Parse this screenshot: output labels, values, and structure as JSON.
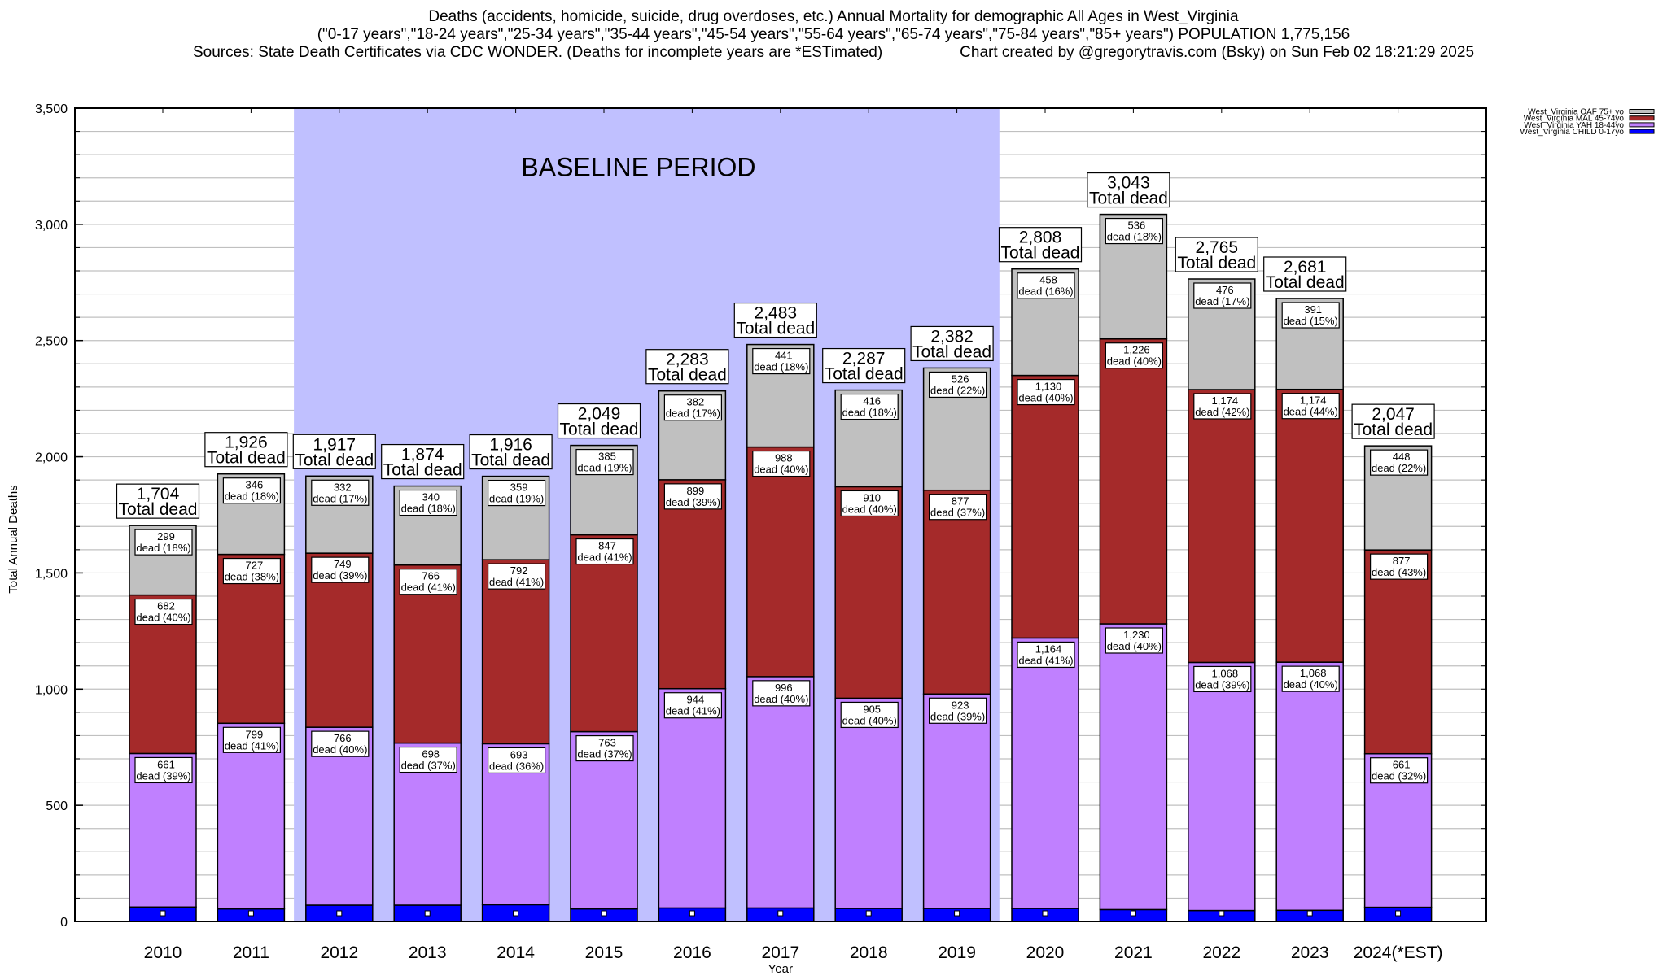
{
  "header": {
    "title_line_1": "Deaths (accidents, homicide, suicide, drug overdoses, etc.) Annual Mortality for demographic All Ages in West_Virginia",
    "title_line_2": "(\"0-17 years\",\"18-24 years\",\"25-34 years\",\"35-44 years\",\"45-54 years\",\"55-64 years\",\"65-74 years\",\"75-84 years\",\"85+ years\") POPULATION 1,775,156",
    "sources": "Sources: State Death Certificates via CDC WONDER. (Deaths for incomplete years are *ESTimated)",
    "credit": "Chart created by @gregorytravis.com (Bsky) on Sun Feb 02 18:21:29 2025"
  },
  "chart_data": {
    "type": "bar",
    "stacked": true,
    "title": "Deaths (accidents, homicide, suicide, drug overdoses, etc.) Annual Mortality for demographic All Ages in West_Virginia",
    "xlabel": "Year",
    "ylabel": "Total Annual Deaths",
    "ylim": [
      0,
      3500
    ],
    "yticks": [
      0,
      500,
      1000,
      1500,
      2000,
      2500,
      3000,
      3500
    ],
    "ytick_labels": [
      "0",
      "500",
      "1,000",
      "1,500",
      "2,000",
      "2,500",
      "3,000",
      "3,500"
    ],
    "minor_grid_step": 100,
    "grid": true,
    "legend_placement": "top-right (outside plot)",
    "categories": [
      "2010",
      "2011",
      "2012",
      "2013",
      "2014",
      "2015",
      "2016",
      "2017",
      "2018",
      "2019",
      "2020",
      "2021",
      "2022",
      "2023",
      "2024(*EST)"
    ],
    "series": [
      {
        "name": "West_Virginia CHILD 0-17yo",
        "color": "#0000ff",
        "values": [
          62,
          54,
          70,
          70,
          72,
          54,
          58,
          58,
          56,
          56,
          56,
          51,
          47,
          48,
          61
        ],
        "pct": [
          null,
          null,
          null,
          null,
          null,
          null,
          null,
          null,
          null,
          null,
          null,
          null,
          null,
          null,
          null
        ]
      },
      {
        "name": "West_Virginia YAH 18-44yo",
        "color": "#c080ff",
        "values": [
          661,
          799,
          766,
          698,
          693,
          763,
          944,
          996,
          905,
          923,
          1164,
          1230,
          1068,
          1068,
          661
        ],
        "pct": [
          39,
          41,
          40,
          37,
          36,
          37,
          41,
          40,
          40,
          39,
          41,
          40,
          39,
          40,
          32
        ]
      },
      {
        "name": "West_Virginia MAL 45-74yo",
        "color": "#a52a2a",
        "values": [
          682,
          727,
          749,
          766,
          792,
          847,
          899,
          988,
          910,
          877,
          1130,
          1226,
          1174,
          1174,
          877
        ],
        "pct": [
          40,
          38,
          39,
          41,
          41,
          41,
          39,
          40,
          40,
          37,
          40,
          40,
          42,
          44,
          43
        ]
      },
      {
        "name": "West_Virginia OAF 75+ yo",
        "color": "#c0c0c0",
        "values": [
          299,
          346,
          332,
          340,
          359,
          385,
          382,
          441,
          416,
          526,
          458,
          536,
          476,
          391,
          448
        ],
        "pct": [
          18,
          18,
          17,
          18,
          19,
          19,
          17,
          18,
          18,
          22,
          16,
          18,
          17,
          15,
          22
        ]
      }
    ],
    "totals": [
      1704,
      1926,
      1917,
      1874,
      1916,
      2049,
      2283,
      2483,
      2287,
      2382,
      2808,
      3043,
      2765,
      2681,
      2047
    ],
    "total_suffix": "Total dead",
    "segment_suffix": "dead",
    "legend_order": [
      "West_Virginia OAF 75+ yo",
      "West_Virginia MAL 45-74yo",
      "West_Virginia YAH 18-44yo",
      "West_Virginia CHILD 0-17yo"
    ],
    "annotations": [
      {
        "text": "BASELINE PERIOD",
        "from_category": "2012",
        "to_category": "2019",
        "color": "#c0c0ff"
      }
    ]
  }
}
